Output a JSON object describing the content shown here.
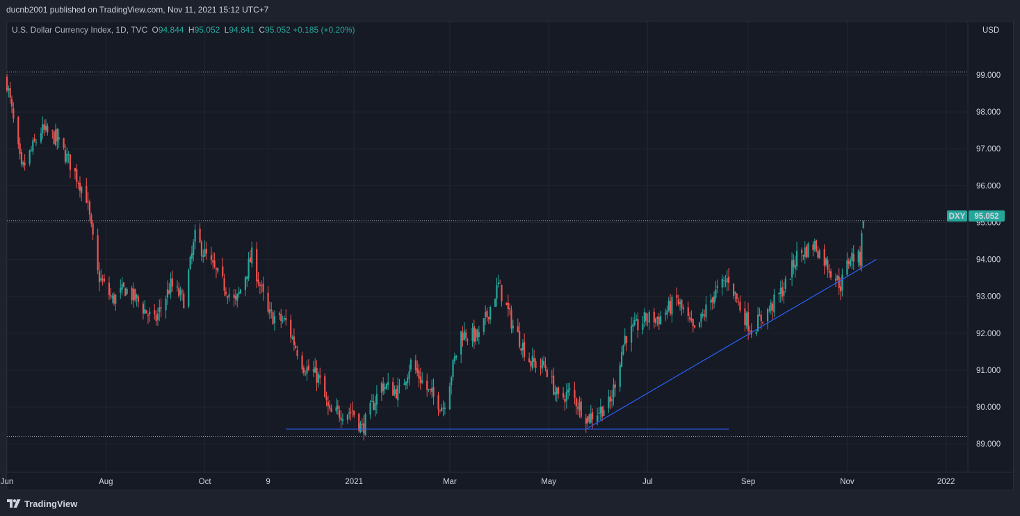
{
  "header": {
    "published": "ducnb2001 published on TradingView.com, Nov 11, 2021 15:12 UTC+7"
  },
  "legend": {
    "symbol": "U.S. Dollar Currency Index, 1D, TVC",
    "o_label": "O",
    "o_value": "94.844",
    "h_label": "H",
    "h_value": "95.052",
    "l_label": "L",
    "l_value": "94.841",
    "c_label": "C",
    "c_value": "95.052",
    "change": "+0.185 (+0.20%)"
  },
  "currency_label": "USD",
  "price_tag": {
    "ticker": "DXY",
    "value": "95.052"
  },
  "footer": {
    "brand": "TradingView"
  },
  "colors": {
    "up": "#26a69a",
    "down": "#ef5350",
    "trendline": "#2962ff",
    "background": "#161a25",
    "grid": "#22262f",
    "text": "#d1d4dc"
  },
  "chart_data": {
    "type": "candlestick",
    "title": "U.S. Dollar Currency Index, 1D, TVC",
    "ylim": [
      88.25,
      100.45
    ],
    "y_ticks": [
      "89.000",
      "90.000",
      "91.000",
      "92.000",
      "93.000",
      "94.000",
      "95.000",
      "96.000",
      "97.000",
      "98.000",
      "99.000"
    ],
    "x_ticks": [
      {
        "label": "Jun",
        "date": "2020-06-01"
      },
      {
        "label": "Aug",
        "date": "2020-08-01"
      },
      {
        "label": "Oct",
        "date": "2020-10-01"
      },
      {
        "label": "9",
        "date": "2020-11-09"
      },
      {
        "label": "2021",
        "date": "2021-01-01"
      },
      {
        "label": "Mar",
        "date": "2021-03-01"
      },
      {
        "label": "May",
        "date": "2021-05-01"
      },
      {
        "label": "Jul",
        "date": "2021-07-01"
      },
      {
        "label": "Sep",
        "date": "2021-09-01"
      },
      {
        "label": "Nov",
        "date": "2021-11-01"
      },
      {
        "label": "2022",
        "date": "2022-01-01"
      }
    ],
    "xlim": [
      "2020-06-01",
      "2022-01-14"
    ],
    "last_close": 95.052,
    "dotted_levels": [
      99.08,
      95.052,
      89.2
    ],
    "trendlines": [
      {
        "from": [
          "2020-11-20",
          89.4
        ],
        "to": [
          "2021-08-20",
          89.4
        ]
      },
      {
        "from": [
          "2021-05-24",
          89.4
        ],
        "to": [
          "2021-11-19",
          94.0
        ]
      }
    ],
    "close_path": [
      [
        "2020-06-01",
        98.8
      ],
      [
        "2020-06-10",
        96.4
      ],
      [
        "2020-06-22",
        97.5
      ],
      [
        "2020-07-01",
        97.3
      ],
      [
        "2020-07-10",
        96.6
      ],
      [
        "2020-07-20",
        95.7
      ],
      [
        "2020-07-27",
        93.6
      ],
      [
        "2020-08-05",
        92.9
      ],
      [
        "2020-08-13",
        93.2
      ],
      [
        "2020-08-20",
        92.9
      ],
      [
        "2020-08-31",
        92.3
      ],
      [
        "2020-09-10",
        93.3
      ],
      [
        "2020-09-18",
        92.9
      ],
      [
        "2020-09-25",
        94.6
      ],
      [
        "2020-10-07",
        93.7
      ],
      [
        "2020-10-20",
        92.8
      ],
      [
        "2020-10-30",
        94.1
      ],
      [
        "2020-11-09",
        92.5
      ],
      [
        "2020-11-20",
        92.3
      ],
      [
        "2020-12-01",
        91.1
      ],
      [
        "2020-12-10",
        90.8
      ],
      [
        "2020-12-17",
        89.8
      ],
      [
        "2020-12-31",
        89.9
      ],
      [
        "2021-01-06",
        89.4
      ],
      [
        "2021-01-18",
        90.6
      ],
      [
        "2021-01-29",
        90.4
      ],
      [
        "2021-02-05",
        91.2
      ],
      [
        "2021-02-16",
        90.4
      ],
      [
        "2021-02-25",
        90.0
      ],
      [
        "2021-03-08",
        92.0
      ],
      [
        "2021-03-19",
        91.9
      ],
      [
        "2021-03-31",
        93.3
      ],
      [
        "2021-04-09",
        92.2
      ],
      [
        "2021-04-20",
        91.2
      ],
      [
        "2021-04-29",
        91.1
      ],
      [
        "2021-05-07",
        90.2
      ],
      [
        "2021-05-14",
        90.4
      ],
      [
        "2021-05-25",
        89.7
      ],
      [
        "2021-06-08",
        90.1
      ],
      [
        "2021-06-17",
        91.9
      ],
      [
        "2021-06-30",
        92.4
      ],
      [
        "2021-07-08",
        92.4
      ],
      [
        "2021-07-19",
        92.9
      ],
      [
        "2021-07-30",
        92.0
      ],
      [
        "2021-08-10",
        93.0
      ],
      [
        "2021-08-20",
        93.5
      ],
      [
        "2021-08-27",
        92.7
      ],
      [
        "2021-09-03",
        92.1
      ],
      [
        "2021-09-15",
        92.7
      ],
      [
        "2021-09-24",
        93.3
      ],
      [
        "2021-10-01",
        94.1
      ],
      [
        "2021-10-12",
        94.4
      ],
      [
        "2021-10-22",
        93.7
      ],
      [
        "2021-10-28",
        93.3
      ],
      [
        "2021-11-03",
        94.1
      ],
      [
        "2021-11-09",
        94.0
      ],
      [
        "2021-11-10",
        94.844
      ],
      [
        "2021-11-11",
        95.052
      ]
    ]
  }
}
